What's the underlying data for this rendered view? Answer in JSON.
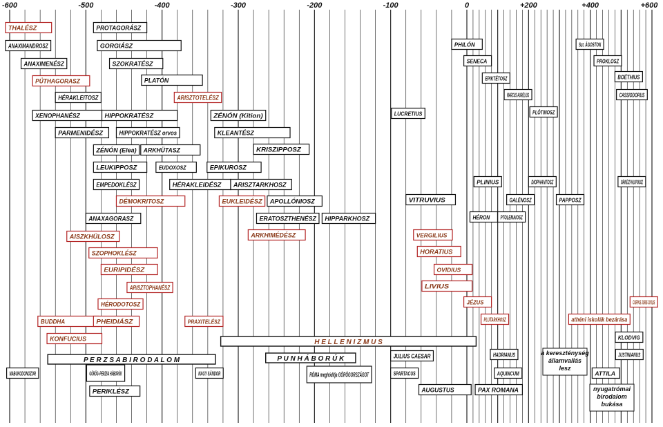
{
  "axis": {
    "start": -600,
    "end": 600,
    "ticks": [
      {
        "value": -600,
        "label": "-600"
      },
      {
        "value": -500,
        "label": "-500"
      },
      {
        "value": -400,
        "label": "-400"
      },
      {
        "value": -300,
        "label": "-300"
      },
      {
        "value": -200,
        "label": "-200"
      },
      {
        "value": -100,
        "label": "-100"
      },
      {
        "value": 0,
        "label": "0"
      },
      {
        "value": 200,
        "label": "+200"
      },
      {
        "value": 400,
        "label": "+400"
      },
      {
        "value": 600,
        "label": "+600"
      }
    ]
  },
  "colors": {
    "ink": "#111111",
    "highlight_border": "#b22222",
    "highlight_text": "#8b3a1a"
  },
  "entries": [
    {
      "id": "thalesz",
      "label": "THALÉSZ",
      "start": -620,
      "end": -545,
      "highlight": true
    },
    {
      "id": "protagorasz",
      "label": "PROTAGORÁSZ",
      "start": -490,
      "end": -420
    },
    {
      "id": "anaximandrosz",
      "label": "ANAXIMANDROSZ",
      "start": -610,
      "end": -546
    },
    {
      "id": "gorgiasz",
      "label": "GORGIÁSZ",
      "start": -485,
      "end": -375
    },
    {
      "id": "anaximenesz",
      "label": "ANAXIMENÉSZ",
      "start": -585,
      "end": -525
    },
    {
      "id": "szokratesz",
      "label": "SZOKRATÉSZ",
      "start": -469,
      "end": -399
    },
    {
      "id": "puthagorasz",
      "label": "PÜTHAGORASZ",
      "start": -570,
      "end": -495,
      "highlight": true
    },
    {
      "id": "platon",
      "label": "PLATÓN",
      "start": -427,
      "end": -347
    },
    {
      "id": "herakleitosz",
      "label": "HÉRAKLEITOSZ",
      "start": -540,
      "end": -480
    },
    {
      "id": "arisztotelesz",
      "label": "ARISZTOTELÉSZ",
      "start": -384,
      "end": -322,
      "highlight": true
    },
    {
      "id": "xenophanesz",
      "label": "XENOPHANÉSZ",
      "start": -570,
      "end": -478
    },
    {
      "id": "hippokratesz",
      "label": "HIPPOKRATÉSZ",
      "start": -479,
      "end": -380
    },
    {
      "id": "zenon-kition",
      "label": "ZÉNÓN (Kition)",
      "start": -336,
      "end": -264
    },
    {
      "id": "parmenidesz",
      "label": "PARMENIDÉSZ",
      "start": -540,
      "end": -470
    },
    {
      "id": "hippokratesz-orvos",
      "label": "HIPPOKRATÉSZ orvos",
      "start": -460,
      "end": -377
    },
    {
      "id": "kleanthesz",
      "label": "KLEANTÉSZ",
      "start": -331,
      "end": -232
    },
    {
      "id": "zenon-elea",
      "label": "ZÉNÓN (Elea)",
      "start": -490,
      "end": -430
    },
    {
      "id": "arkhutasz",
      "label": "ARKHÜTASZ",
      "start": -428,
      "end": -350
    },
    {
      "id": "krisziposz",
      "label": "KRISZIPPOSZ",
      "start": -280,
      "end": -207
    },
    {
      "id": "leukipposz",
      "label": "LEUKIPPOSZ",
      "start": -490,
      "end": -420
    },
    {
      "id": "eudoxosz",
      "label": "EUDOXOSZ",
      "start": -408,
      "end": -355
    },
    {
      "id": "epikurosz",
      "label": "EPIKUROSZ",
      "start": -341,
      "end": -270
    },
    {
      "id": "empedoklesz",
      "label": "EMPEDOKLÉSZ",
      "start": -490,
      "end": -430
    },
    {
      "id": "herakleidesz",
      "label": "HÉRAKLEIDÉSZ",
      "start": -390,
      "end": -310
    },
    {
      "id": "arisztarkhosz",
      "label": "ARISZTARKHOSZ",
      "start": -310,
      "end": -230
    },
    {
      "id": "demokritosz",
      "label": "DÉMOKRITOSZ",
      "start": -460,
      "end": -370,
      "highlight": true
    },
    {
      "id": "eukleidesz",
      "label": "EUKLEIDÉSZ",
      "start": -325,
      "end": -265,
      "highlight": true
    },
    {
      "id": "apolloniosz",
      "label": "APOLLÓNIOSZ",
      "start": -262,
      "end": -190
    },
    {
      "id": "anaxagorasz",
      "label": "ANAXAGORASZ",
      "start": -500,
      "end": -428
    },
    {
      "id": "eratoszthenesz",
      "label": "ERATOSZTHENÉSZ",
      "start": -276,
      "end": -194
    },
    {
      "id": "hipparkhosz",
      "label": "HIPPARKHOSZ",
      "start": -190,
      "end": -120
    },
    {
      "id": "aiszkhulosz",
      "label": "AISZKHÜLOSZ",
      "start": -525,
      "end": -456,
      "highlight": true
    },
    {
      "id": "arkhimedesz",
      "label": "ARKHIMÉDÉSZ",
      "start": -287,
      "end": -212,
      "highlight": true
    },
    {
      "id": "szophoklesz",
      "label": "SZOPHOKLÉSZ",
      "start": -496,
      "end": -406,
      "highlight": true
    },
    {
      "id": "euripidesz",
      "label": "EURIPIDÉSZ",
      "start": -480,
      "end": -406,
      "highlight": true
    },
    {
      "id": "arisztophanesz",
      "label": "ARISZTOPHANÉSZ",
      "start": -446,
      "end": -386,
      "highlight": true
    },
    {
      "id": "herodotosz",
      "label": "HÉRODOTOSZ",
      "start": -484,
      "end": -425,
      "highlight": true
    },
    {
      "id": "buddha",
      "label": "BUDDHA",
      "start": -563,
      "end": -483,
      "highlight": true
    },
    {
      "id": "pheidiasz",
      "label": "PHEIDIÁSZ",
      "start": -490,
      "end": -430,
      "highlight": true
    },
    {
      "id": "praxitelesz",
      "label": "PRAXITELÉSZ",
      "start": -370,
      "end": -320,
      "highlight": true
    },
    {
      "id": "konfucius",
      "label": "KONFUCIUS",
      "start": -551,
      "end": -479,
      "highlight": true
    },
    {
      "id": "nabukodonozor",
      "label": "NABUKODONOZOR",
      "start": -604,
      "end": -562
    },
    {
      "id": "gorog-perzsa",
      "label": "GÖRÖG–PERZSA HÁBORÚK",
      "start": -499,
      "end": -449
    },
    {
      "id": "nagy-sandor",
      "label": "NAGY SÁNDOR",
      "start": -356,
      "end": -323
    },
    {
      "id": "periklesz",
      "label": "PERIKLÉSZ",
      "start": -495,
      "end": -429
    },
    {
      "id": "roma",
      "label": "RÓMA meghódítja GÖRÖGORSZÁGOT",
      "start": -210,
      "end": -125
    },
    {
      "id": "lucretius",
      "label": "LUCRETIUS",
      "start": -99,
      "end": -55
    },
    {
      "id": "vergilius",
      "label": "VERGILIUS",
      "start": -70,
      "end": -19,
      "highlight": true
    },
    {
      "id": "horatius",
      "label": "HORATIUS",
      "start": -65,
      "end": -8,
      "highlight": true
    },
    {
      "id": "ovidius",
      "label": "OVIDIUS",
      "start": -43,
      "end": 17,
      "highlight": true
    },
    {
      "id": "livius",
      "label": "LIVIUS",
      "start": -59,
      "end": 17,
      "highlight": true
    },
    {
      "id": "vitruvius",
      "label": "VITRUVIUS",
      "start": -80,
      "end": -15
    },
    {
      "id": "julius-caesar",
      "label": "JULIUS CAESAR",
      "start": -100,
      "end": -44
    },
    {
      "id": "spartacus",
      "label": "SPARTACUS",
      "start": -100,
      "end": -71
    },
    {
      "id": "augustus",
      "label": "AUGUSTUS",
      "start": -63,
      "end": 14
    },
    {
      "id": "philon",
      "label": "PHILÓN",
      "start": -20,
      "end": 50
    },
    {
      "id": "seneca",
      "label": "SENECA",
      "start": -4,
      "end": 65
    },
    {
      "id": "epiktetosz",
      "label": "EPIKTÉTOSZ",
      "start": 50,
      "end": 138
    },
    {
      "id": "marcus-aurelius",
      "label": "MARCUS AURÉLIUS",
      "start": 121,
      "end": 180
    },
    {
      "id": "plotinosz",
      "label": "PLÓTINOSZ",
      "start": 204,
      "end": 270
    },
    {
      "id": "plinius",
      "label": "PLINIUS",
      "start": 23,
      "end": 79
    },
    {
      "id": "diophantosz",
      "label": "DIOPHANTOSZ",
      "start": 200,
      "end": 284
    },
    {
      "id": "galenosz",
      "label": "GALÉNOSZ",
      "start": 129,
      "end": 216
    },
    {
      "id": "papposz",
      "label": "PAPPOSZ",
      "start": 290,
      "end": 350
    },
    {
      "id": "heron",
      "label": "HÉRON",
      "start": 10,
      "end": 70
    },
    {
      "id": "ptolemaiosz",
      "label": "PTOLEMAIOSZ",
      "start": 100,
      "end": 170
    },
    {
      "id": "jezus",
      "label": "JÉZUS",
      "start": -4,
      "end": 33,
      "highlight": true
    },
    {
      "id": "plutarkhosz",
      "label": "PLUTARKHOSZ",
      "start": 46,
      "end": 120,
      "highlight": true
    },
    {
      "id": "hadrianus",
      "label": "HADRIANUS",
      "start": 76,
      "end": 138
    },
    {
      "id": "aquincum",
      "label": "AQUINCUM",
      "start": 89,
      "end": 150
    },
    {
      "id": "pax-romana",
      "label": "PAX ROMANA",
      "start": 27,
      "end": 180
    },
    {
      "id": "szt-agoston",
      "label": "Szt. ÁGOSTON",
      "start": 354,
      "end": 430
    },
    {
      "id": "prokolsz",
      "label": "PROKLOSZ",
      "start": 412,
      "end": 485
    },
    {
      "id": "boethius",
      "label": "BOÉTHIUS",
      "start": 480,
      "end": 524
    },
    {
      "id": "cassiodorus",
      "label": "CASSIODORUS",
      "start": 485,
      "end": 585
    },
    {
      "id": "ioannesz",
      "label": "IOÁNNÉSZ PHILOPONOSZ",
      "start": 490,
      "end": 570
    },
    {
      "id": "corpus",
      "label": "CORPUS JURIS CIVILIS",
      "start": 529,
      "end": 565,
      "highlight": true
    },
    {
      "id": "athen-iskolak",
      "label": "athéni iskolák bezárása",
      "start": 330,
      "end": 529,
      "highlight": true
    },
    {
      "id": "kldvig",
      "label": "KLODVIG",
      "start": 481,
      "end": 511
    },
    {
      "id": "justinianus",
      "label": "JUSTINIANUS",
      "start": 482,
      "end": 565
    },
    {
      "id": "attila",
      "label": "ATTILA",
      "start": 406,
      "end": 453
    }
  ],
  "periods": [
    {
      "id": "hellenizmus",
      "label": "H E L L E N I Z M U S",
      "start": -323,
      "end": 30
    },
    {
      "id": "perzsa",
      "label": "P E R Z S A   B I R O D A L O M",
      "start": -550,
      "end": -330
    },
    {
      "id": "pun-haboruk",
      "label": "P U N   H Á B O R Ú K",
      "start": -264,
      "end": -146
    }
  ],
  "notes": [
    {
      "id": "keresztenyseg",
      "lines": [
        "a kereszténység",
        "államvallás",
        "lesz"
      ]
    },
    {
      "id": "nyugatromai",
      "lines": [
        "nyugatrómai",
        "birodalom",
        "bukása"
      ]
    }
  ]
}
